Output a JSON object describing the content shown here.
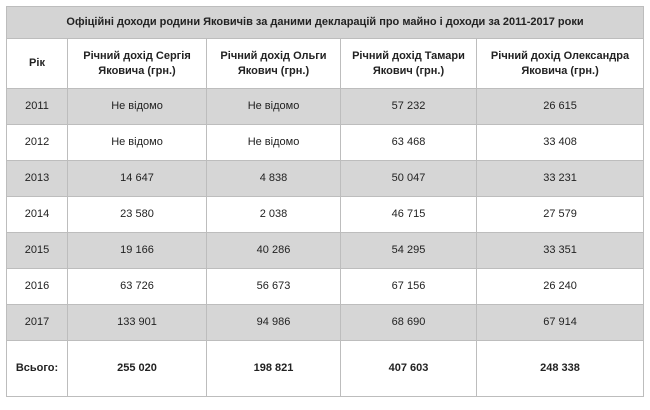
{
  "table": {
    "title": "Офіційні доходи родини Яковичів за даними декларацій про майно і доходи за 2011-2017 роки",
    "header": [
      "Рік",
      "Річний дохід Сергія Яковича (грн.)",
      "Річний дохід Ольги Якович (грн.)",
      "Річний дохід Тамари Якович (грн.)",
      "Річний дохід Олександра Яковича (грн.)"
    ],
    "rows": [
      [
        "2011",
        "Не відомо",
        "Не відомо",
        "57 232",
        "26 615"
      ],
      [
        "2012",
        "Не відомо",
        "Не відомо",
        "63 468",
        "33 408"
      ],
      [
        "2013",
        "14 647",
        "4 838",
        "50 047",
        "33 231"
      ],
      [
        "2014",
        "23 580",
        "2 038",
        "46 715",
        "27 579"
      ],
      [
        "2015",
        "19 166",
        "40 286",
        "54 295",
        "33 351"
      ],
      [
        "2016",
        "63 726",
        "56 673",
        "67 156",
        "26 240"
      ],
      [
        "2017",
        "133 901",
        "94 986",
        "68 690",
        "67 914"
      ]
    ],
    "total": [
      "Всього:",
      "255 020",
      "198 821",
      "407 603",
      "248 338"
    ]
  }
}
